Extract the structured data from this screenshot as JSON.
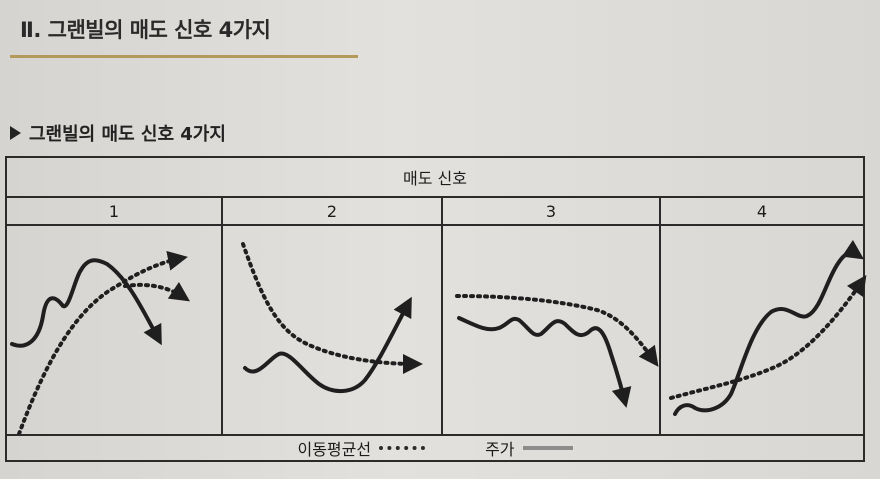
{
  "section": {
    "title": "Ⅱ. 그랜빌의 매도 신호 4가지",
    "subtitle": "그랜빌의 매도 신호 4가지"
  },
  "table": {
    "header": "매도 신호",
    "columns": [
      "1",
      "2",
      "3",
      "4"
    ]
  },
  "legend": {
    "moving_average": "이동평균선",
    "price": "주가"
  },
  "colors": {
    "accent_rule": "#b49a5a",
    "line": "#1f1f1f",
    "legend_price": "#8c8c8c"
  }
}
